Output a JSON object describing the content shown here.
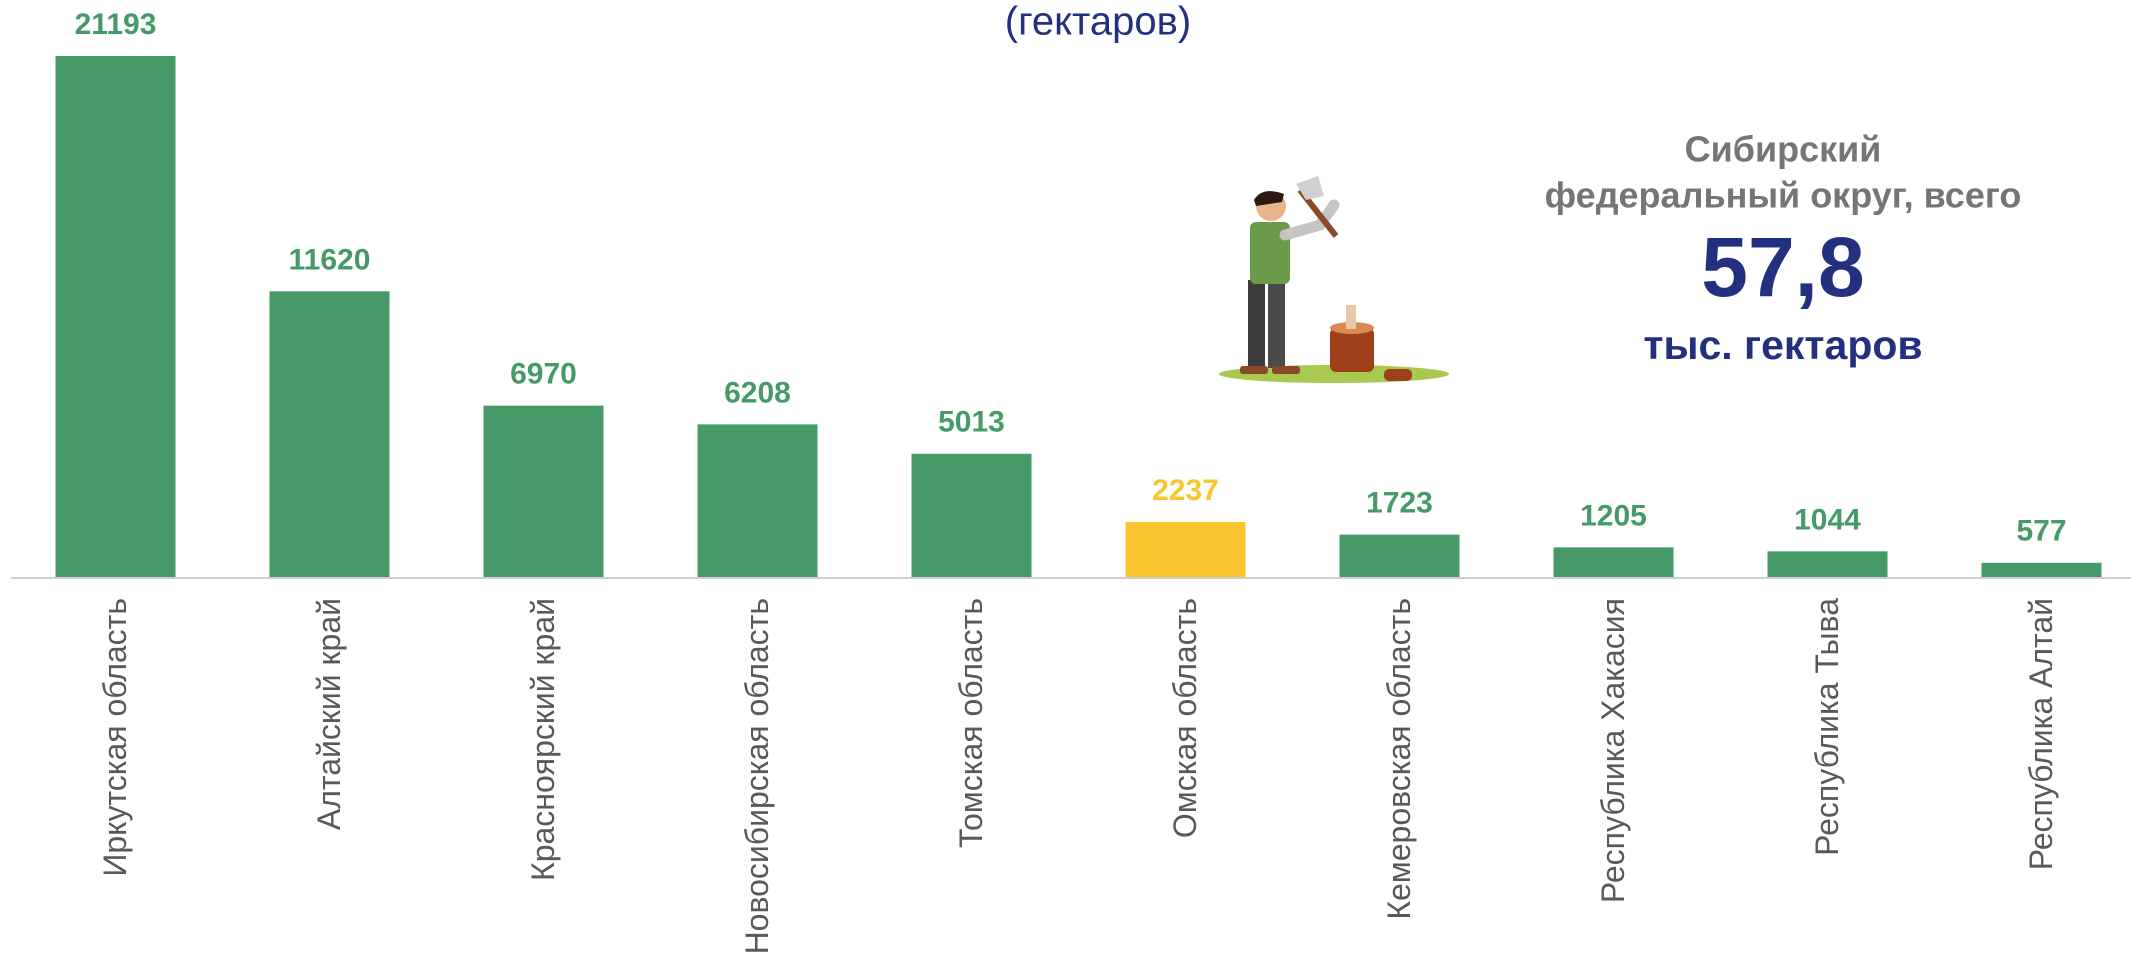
{
  "chart_data": {
    "type": "bar",
    "title": "(гектаров)",
    "categories": [
      "Иркутская область",
      "Алтайский край",
      "Красноярский край",
      "Новосибирская область",
      "Томская область",
      "Омская область",
      "Кемеровская область",
      "Республика Хакасия",
      "Республика Тыва",
      "Республика Алтай"
    ],
    "values": [
      21193,
      11620,
      6970,
      6208,
      5013,
      2237,
      1723,
      1205,
      1044,
      577
    ],
    "colors": [
      "#459a68",
      "#459a68",
      "#459a68",
      "#459a68",
      "#459a68",
      "#fbc530",
      "#459a68",
      "#459a68",
      "#459a68",
      "#459a68"
    ],
    "annotation": {
      "lines": [
        "Сибирский",
        "федеральный округ, всего"
      ],
      "value": "57,8",
      "unit": "тыс. гектаров"
    }
  }
}
